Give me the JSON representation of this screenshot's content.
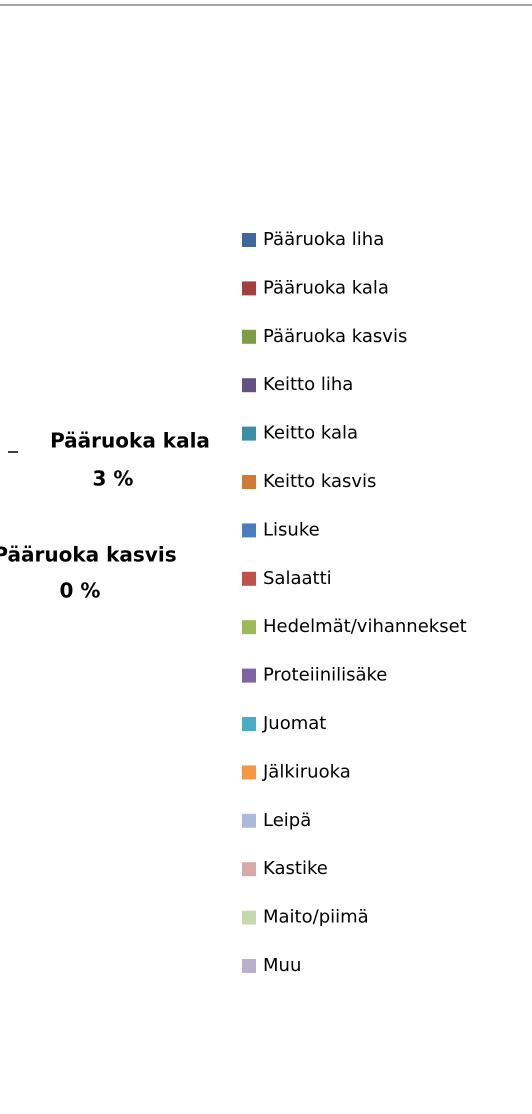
{
  "chart_data": {
    "type": "pie",
    "categories": [
      "Pääruoka liha",
      "Pääruoka kala",
      "Pääruoka kasvis",
      "Keitto liha",
      "Keitto kala",
      "Keitto kasvis",
      "Lisuke",
      "Salaatti",
      "Hedelmät/vihannekset",
      "Proteiinilisäke",
      "Juomat",
      "Jälkiruoka",
      "Leipä",
      "Kastike",
      "Maito/piimä",
      "Muu"
    ],
    "values": [
      null,
      3,
      0,
      null,
      null,
      null,
      null,
      null,
      null,
      null,
      null,
      null,
      null,
      null,
      null,
      null
    ],
    "value_labels": [
      null,
      "3 %",
      "0 %",
      null,
      null,
      null,
      null,
      null,
      null,
      null,
      null,
      null,
      null,
      null,
      null,
      null
    ],
    "colors": [
      "#3C689D",
      "#A2403D",
      "#7E9B45",
      "#654F85",
      "#3A8FA4",
      "#D17A33",
      "#4A7EBF",
      "#C0504D",
      "#9BBB59",
      "#8064A2",
      "#4BACC6",
      "#F79646",
      "#AABADA",
      "#D9A9A8",
      "#C6D9AE",
      "#BBB0CC"
    ],
    "legend": "right"
  }
}
